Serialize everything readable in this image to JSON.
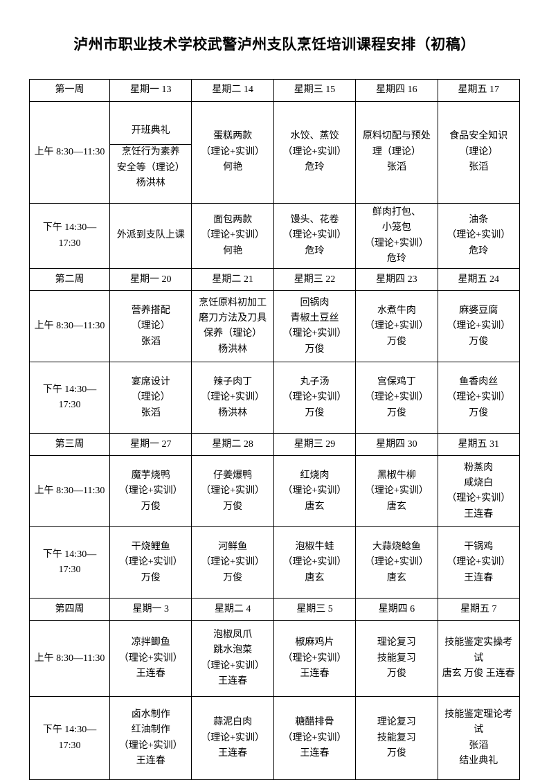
{
  "title": "泸州市职业技术学校武警泸州支队烹饪培训课程安排（初稿）",
  "periods": {
    "am": "上午 8:30—11:30",
    "pm": "下午 14:30—\n17:30"
  },
  "weeks": [
    {
      "label": "第一周",
      "days": [
        "星期一 13",
        "星期二 14",
        "星期三 15",
        "星期四 16",
        "星期五 17"
      ],
      "am": {
        "period": "上午 8:30—11:30",
        "cells": [
          {
            "top": "开班典礼",
            "bottom": "烹饪行为素养\n安全等（理论）\n杨洪林"
          },
          "蛋糕两款\n（理论+实训）\n何艳",
          "水饺、蒸饺\n（理论+实训）\n危玲",
          "原料切配与预处理（理论）\n张滔",
          "食品安全知识\n（理论）\n张滔"
        ]
      },
      "pm": {
        "period": "下午 14:30—\n17:30",
        "cells": [
          "外派到支队上课",
          "面包两款\n（理论+实训）\n何艳",
          "馒头、花卷\n（理论+实训）\n危玲",
          "鲜肉打包、\n小笼包\n（理论+实训）\n危玲",
          "油条\n（理论+实训）\n危玲"
        ]
      }
    },
    {
      "label": "第二周",
      "days": [
        "星期一 20",
        "星期二 21",
        "星期三 22",
        "星期四 23",
        "星期五 24"
      ],
      "am": {
        "period": "上午 8:30—11:30",
        "cells": [
          "营养搭配\n（理论）\n张滔",
          "烹饪原料初加工\n磨刀方法及刀具\n保养（理论）\n杨洪林",
          "回锅肉\n青椒土豆丝\n（理论+实训）\n万俊",
          "水煮牛肉\n（理论+实训）\n万俊",
          "麻婆豆腐\n（理论+实训）\n万俊"
        ]
      },
      "pm": {
        "period": "下午 14:30—\n17:30",
        "cells": [
          "宴席设计\n（理论）\n张滔",
          "辣子肉丁\n（理论+实训）\n杨洪林",
          "丸子汤\n（理论+实训）\n万俊",
          "宫保鸡丁\n（理论+实训）\n万俊",
          "鱼香肉丝\n（理论+实训）\n万俊"
        ]
      }
    },
    {
      "label": "第三周",
      "days": [
        "星期一 27",
        "星期二 28",
        "星期三 29",
        "星期四 30",
        "星期五 31"
      ],
      "am": {
        "period": "上午 8:30—11:30",
        "cells": [
          "魔芋烧鸭\n（理论+实训）\n万俊",
          "仔姜爆鸭\n（理论+实训）\n万俊",
          "红烧肉\n（理论+实训）\n唐玄",
          "黑椒牛柳\n（理论+实训）\n唐玄",
          "粉蒸肉\n咸烧白\n（理论+实训）\n王连春"
        ]
      },
      "pm": {
        "period": "下午 14:30—\n17:30",
        "cells": [
          "干烧鲤鱼\n（理论+实训）\n万俊",
          "河鲜鱼\n（理论+实训）\n万俊",
          "泡椒牛蛙\n（理论+实训）\n唐玄",
          "大蒜烧鲶鱼\n（理论+实训）\n唐玄",
          "干锅鸡\n（理论+实训）\n王连春"
        ]
      }
    },
    {
      "label": "第四周",
      "days": [
        "星期一 3",
        "星期二 4",
        "星期三 5",
        "星期四 6",
        "星期五 7"
      ],
      "am": {
        "period": "上午 8:30—11:30",
        "cells": [
          "凉拌鲫鱼\n（理论+实训）\n王连春",
          "泡椒凤爪\n跳水泡菜\n（理论+实训）\n王连春",
          "椒麻鸡片\n（理论+实训）\n王连春",
          "理论复习\n技能复习\n万俊",
          "技能鉴定实操考试\n唐玄 万俊 王连春"
        ]
      },
      "pm": {
        "period": "下午 14:30—\n17:30",
        "cells": [
          "卤水制作\n红油制作\n（理论+实训）\n王连春",
          "蒜泥白肉\n（理论+实训）\n王连春",
          "糖醋排骨\n（理论+实训）\n王连春",
          "理论复习\n技能复习\n万俊",
          "技能鉴定理论考试\n张滔\n结业典礼"
        ]
      }
    }
  ]
}
